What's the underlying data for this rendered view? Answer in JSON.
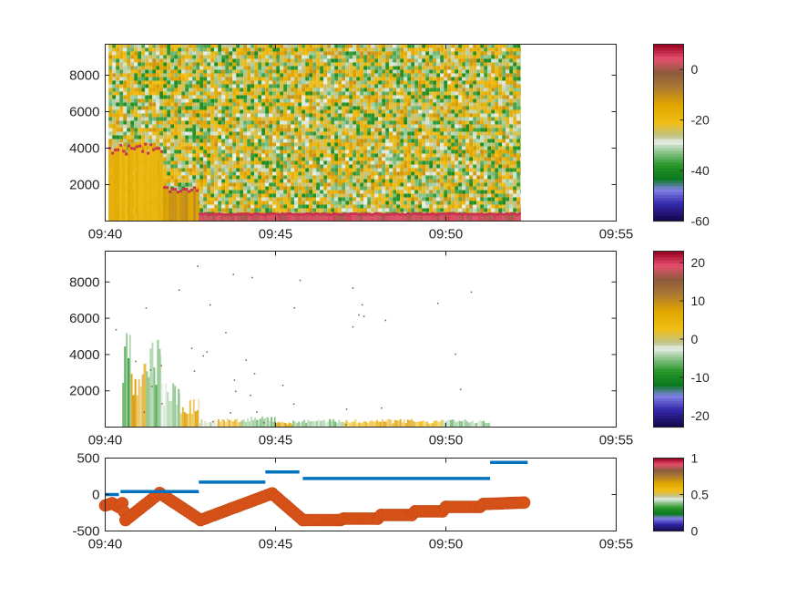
{
  "chart_data": [
    {
      "type": "heatmap",
      "title": "",
      "xlabel": "",
      "ylabel": "",
      "x_tick_labels": [
        "09:40",
        "09:45",
        "09:50",
        "09:55"
      ],
      "x_tick_minutes": [
        0,
        5,
        10,
        15
      ],
      "xlim_minutes": [
        0,
        15
      ],
      "ylim": [
        0,
        9700
      ],
      "y_ticks": [
        2000,
        4000,
        6000,
        8000
      ],
      "data_extent_minutes": [
        0.1,
        12.2
      ],
      "colorbar": {
        "clim": [
          -60,
          10
        ],
        "ticks": [
          -60,
          -40,
          -20,
          0
        ]
      },
      "regions": [
        {
          "x": [
            0.1,
            1.7
          ],
          "y": [
            0,
            4000
          ],
          "value": -18
        },
        {
          "x": [
            1.7,
            2.75
          ],
          "y": [
            0,
            1800
          ],
          "value": -12
        },
        {
          "x": [
            2.75,
            12.2
          ],
          "y": [
            0,
            450
          ],
          "value": 3
        }
      ],
      "noise_level": -25
    },
    {
      "type": "heatmap",
      "title": "",
      "xlabel": "",
      "ylabel": "",
      "x_tick_labels": [
        "09:40",
        "09:45",
        "09:50",
        "09:55"
      ],
      "x_tick_minutes": [
        0,
        5,
        10,
        15
      ],
      "xlim_minutes": [
        0,
        15
      ],
      "ylim": [
        0,
        9700
      ],
      "y_ticks": [
        2000,
        4000,
        6000,
        8000
      ],
      "colorbar": {
        "clim": [
          -23,
          23
        ],
        "ticks": [
          -20,
          -10,
          0,
          10,
          20
        ]
      },
      "columns": [
        {
          "x": [
            0.5,
            0.75
          ],
          "top": 5200,
          "value": -8
        },
        {
          "x": [
            0.75,
            1.2
          ],
          "top": 3800,
          "value": 8
        },
        {
          "x": [
            1.2,
            1.65
          ],
          "top": 5000,
          "value": -6
        },
        {
          "x": [
            1.65,
            2.2
          ],
          "top": 2500,
          "value": -4
        },
        {
          "x": [
            2.2,
            2.75
          ],
          "top": 1600,
          "value": 7
        },
        {
          "x": [
            2.75,
            3.3
          ],
          "top": 450,
          "value": -2
        },
        {
          "x": [
            3.3,
            4.0
          ],
          "top": 550,
          "value": 6
        },
        {
          "x": [
            4.0,
            5.0
          ],
          "top": 600,
          "value": -6
        },
        {
          "x": [
            5.0,
            5.5
          ],
          "top": 300,
          "value": 7
        },
        {
          "x": [
            5.5,
            7.0
          ],
          "top": 450,
          "value": -5
        },
        {
          "x": [
            7.0,
            8.0
          ],
          "top": 450,
          "value": 4
        },
        {
          "x": [
            8.0,
            9.1
          ],
          "top": 450,
          "value": 7
        },
        {
          "x": [
            9.1,
            9.9
          ],
          "top": 400,
          "value": 3
        },
        {
          "x": [
            9.9,
            11.3
          ],
          "top": 450,
          "value": -5
        }
      ]
    },
    {
      "type": "line",
      "title": "",
      "xlabel": "",
      "ylabel": "",
      "x_tick_labels": [
        "09:40",
        "09:45",
        "09:50",
        "09:55"
      ],
      "x_tick_minutes": [
        0,
        5,
        10,
        15
      ],
      "xlim_minutes": [
        0,
        15
      ],
      "ylim": [
        -500,
        500
      ],
      "y_ticks": [
        -500,
        0,
        500
      ],
      "y_tick_labels": [
        "-500",
        "0",
        "500"
      ],
      "colorbar": {
        "clim": [
          0,
          1
        ],
        "ticks": [
          0,
          0.5,
          1
        ]
      },
      "series": [
        {
          "style": "segments",
          "color": "#0072BD",
          "segments": [
            {
              "x": [
                0.0,
                0.4
              ],
              "y": 0
            },
            {
              "x": [
                0.45,
                2.75
              ],
              "y": 40
            },
            {
              "x": [
                2.75,
                4.7
              ],
              "y": 170
            },
            {
              "x": [
                4.7,
                5.7
              ],
              "y": 310
            },
            {
              "x": [
                5.8,
                11.3
              ],
              "y": 220
            },
            {
              "x": [
                11.3,
                12.4
              ],
              "y": 440
            }
          ]
        },
        {
          "style": "markers",
          "color": "#D95319",
          "x": [
            0.0,
            0.2,
            0.4,
            0.5,
            0.6,
            1.6,
            2.8,
            4.9,
            5.8,
            6.9,
            7.0,
            8.0,
            8.1,
            9.0,
            9.1,
            9.9,
            10.0,
            11.0,
            11.1,
            12.3
          ],
          "y": [
            -150,
            -120,
            -170,
            -120,
            -350,
            20,
            -350,
            15,
            -350,
            -350,
            -330,
            -330,
            -280,
            -280,
            -230,
            -230,
            -170,
            -170,
            -130,
            -110
          ]
        }
      ]
    }
  ]
}
